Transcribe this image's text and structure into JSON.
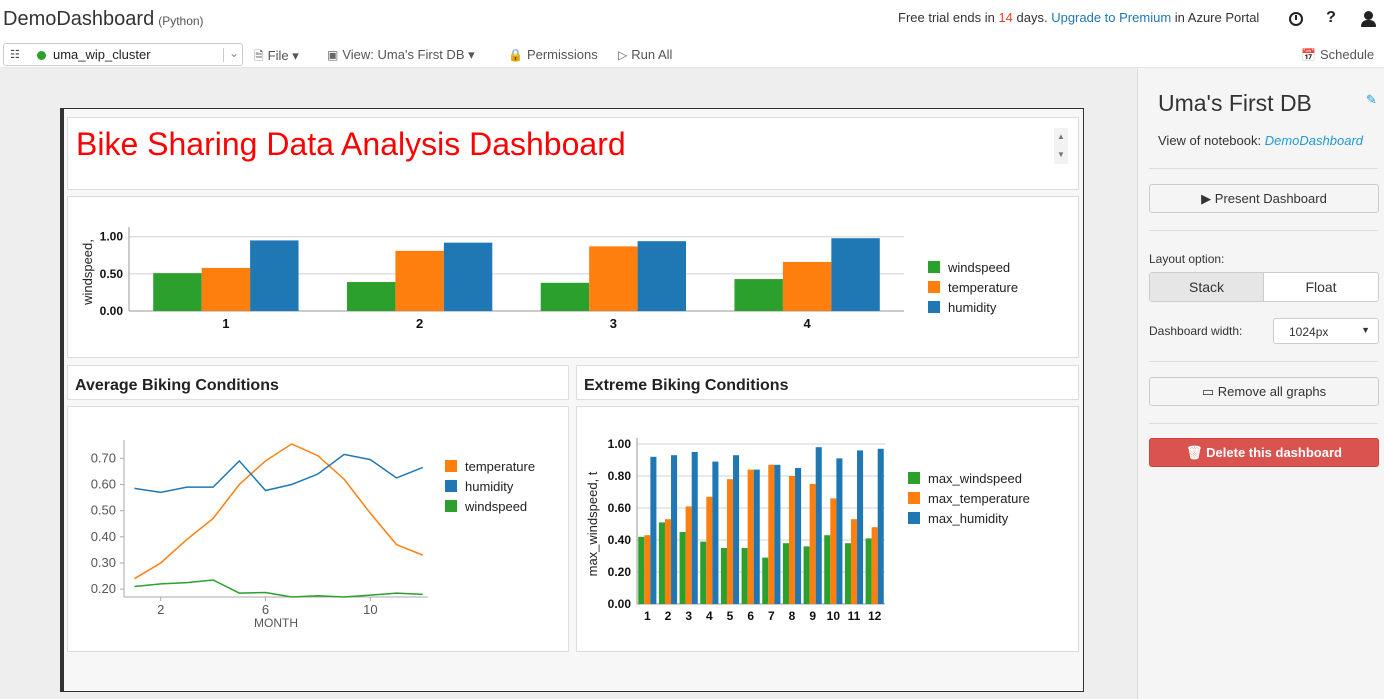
{
  "header": {
    "app_title": "DemoDashboard",
    "language": "(Python)",
    "trial_prefix": "Free trial ends in ",
    "trial_days": "14",
    "trial_mid": " days. ",
    "upgrade_link": "Upgrade to Premium",
    "trial_suffix": " in Azure Portal",
    "help": "?"
  },
  "toolbar": {
    "cluster": "uma_wip_cluster",
    "file": "File",
    "view": "View: Uma's First DB",
    "permissions": "Permissions",
    "run_all": "Run All",
    "schedule": "Schedule"
  },
  "dashboard": {
    "title": "Bike Sharing Data Analysis Dashboard",
    "avg_header": "Average Biking Conditions",
    "ext_header": "Extreme Biking Conditions"
  },
  "colors": {
    "green": "#2ca02c",
    "orange": "#ff7f0e",
    "blue": "#1f77b4",
    "title_red": "#ff0000",
    "danger": "#d9534f"
  },
  "chart_data": [
    {
      "type": "bar",
      "title": "",
      "ylabel": "windspeed,",
      "categories": [
        "1",
        "2",
        "3",
        "4"
      ],
      "ylim": [
        0,
        1.05
      ],
      "yticks": [
        "0.00",
        "0.50",
        "1.00"
      ],
      "legend_position": "right",
      "series": [
        {
          "name": "windspeed",
          "color": "#2ca02c",
          "values": [
            0.51,
            0.39,
            0.38,
            0.43
          ]
        },
        {
          "name": "temperature",
          "color": "#ff7f0e",
          "values": [
            0.58,
            0.81,
            0.87,
            0.66
          ]
        },
        {
          "name": "humidity",
          "color": "#1f77b4",
          "values": [
            0.95,
            0.92,
            0.94,
            0.98
          ]
        }
      ]
    },
    {
      "type": "line",
      "title": "",
      "xlabel": "MONTH",
      "x": [
        1,
        2,
        3,
        4,
        5,
        6,
        7,
        8,
        9,
        10,
        11,
        12
      ],
      "xlim": [
        0.6,
        12.2
      ],
      "ylim": [
        0.17,
        0.77
      ],
      "xticks": [
        "2",
        "6",
        "10"
      ],
      "yticks": [
        "0.20",
        "0.30",
        "0.40",
        "0.50",
        "0.60",
        "0.70"
      ],
      "legend_position": "right",
      "series": [
        {
          "name": "temperature",
          "color": "#ff7f0e",
          "values": [
            0.24,
            0.3,
            0.39,
            0.47,
            0.6,
            0.69,
            0.755,
            0.71,
            0.62,
            0.49,
            0.37,
            0.33
          ]
        },
        {
          "name": "humidity",
          "color": "#1f77b4",
          "values": [
            0.585,
            0.57,
            0.59,
            0.59,
            0.69,
            0.577,
            0.6,
            0.64,
            0.715,
            0.695,
            0.625,
            0.665
          ]
        },
        {
          "name": "windspeed",
          "color": "#2ca02c",
          "values": [
            0.21,
            0.22,
            0.225,
            0.235,
            0.185,
            0.187,
            0.17,
            0.175,
            0.17,
            0.177,
            0.185,
            0.18
          ]
        }
      ]
    },
    {
      "type": "bar",
      "title": "",
      "ylabel": "max_windspeed, t",
      "categories": [
        "1",
        "2",
        "3",
        "4",
        "5",
        "6",
        "7",
        "8",
        "9",
        "10",
        "11",
        "12"
      ],
      "ylim": [
        0,
        1.0
      ],
      "yticks": [
        "0.00",
        "0.20",
        "0.40",
        "0.60",
        "0.80",
        "1.00"
      ],
      "legend_position": "right",
      "series": [
        {
          "name": "max_windspeed",
          "color": "#2ca02c",
          "values": [
            0.42,
            0.51,
            0.45,
            0.39,
            0.35,
            0.35,
            0.29,
            0.38,
            0.36,
            0.43,
            0.38,
            0.41
          ]
        },
        {
          "name": "max_temperature",
          "color": "#ff7f0e",
          "values": [
            0.43,
            0.53,
            0.61,
            0.67,
            0.78,
            0.84,
            0.87,
            0.8,
            0.75,
            0.66,
            0.53,
            0.48
          ]
        },
        {
          "name": "max_humidity",
          "color": "#1f77b4",
          "values": [
            0.92,
            0.93,
            0.95,
            0.89,
            0.93,
            0.84,
            0.87,
            0.85,
            0.98,
            0.91,
            0.96,
            0.97
          ]
        }
      ]
    }
  ],
  "sidebar": {
    "title": "Uma's First DB",
    "view_of_label": "View of notebook: ",
    "notebook_link": "DemoDashboard",
    "present_button": "Present Dashboard",
    "layout_label": "Layout option:",
    "layout_stack": "Stack",
    "layout_float": "Float",
    "width_label": "Dashboard width:",
    "width_value": "1024px",
    "remove_button": "Remove all graphs",
    "delete_button": "Delete this dashboard"
  }
}
